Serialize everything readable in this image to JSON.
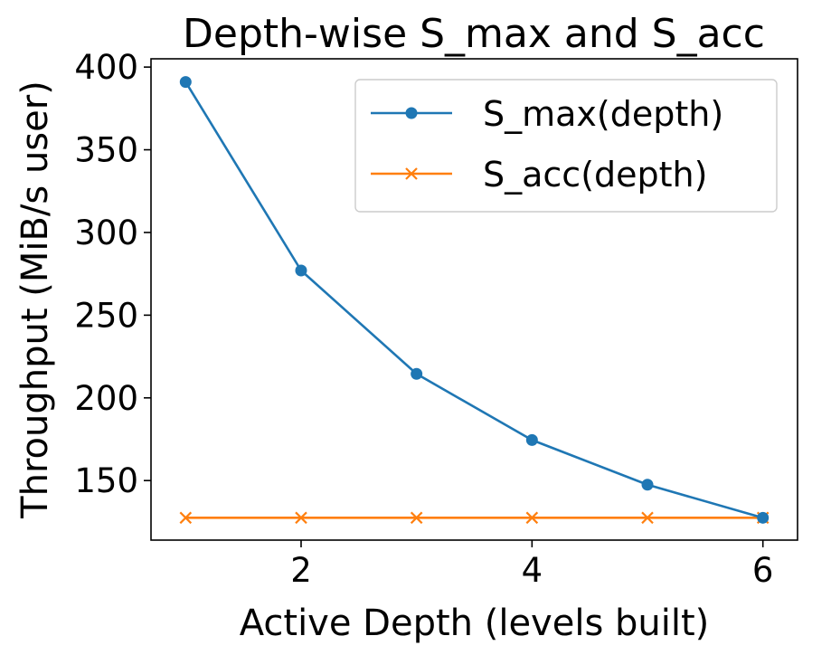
{
  "chart_data": {
    "type": "line",
    "title": "Depth-wise S_max and S_acc",
    "xlabel": "Active Depth (levels built)",
    "ylabel": "Throughput (MiB/s user)",
    "x": [
      1,
      2,
      3,
      4,
      5,
      6
    ],
    "xlim": [
      0.7,
      6.3
    ],
    "ylim": [
      114,
      405
    ],
    "xticks": [
      2,
      4,
      6
    ],
    "yticks": [
      150,
      200,
      250,
      300,
      350,
      400
    ],
    "grid": false,
    "legend_position": "top-right",
    "series": [
      {
        "name": "S_max(depth)",
        "values": [
          391,
          277,
          214.5,
          174.5,
          147.5,
          127.5
        ],
        "color": "#1f77b4",
        "marker": "circle"
      },
      {
        "name": "S_acc(depth)",
        "values": [
          127.5,
          127.5,
          127.5,
          127.5,
          127.5,
          127.5
        ],
        "color": "#ff7f0e",
        "marker": "x"
      }
    ]
  }
}
